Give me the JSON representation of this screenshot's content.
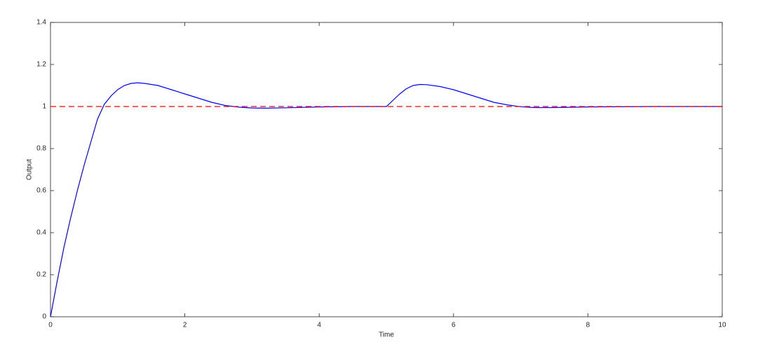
{
  "chart_data": {
    "type": "line",
    "xlabel": "Time",
    "ylabel": "Output",
    "xlim": [
      0,
      10
    ],
    "xticks": [
      0,
      2,
      4,
      6,
      8,
      10
    ],
    "ylim": [
      0,
      1.4
    ],
    "yticks": [
      0,
      0.2,
      0.4,
      0.6,
      0.8,
      1,
      1.2,
      1.4
    ],
    "grid": false,
    "series": [
      {
        "color": "#0000ff",
        "style": "solid",
        "x": [
          0,
          0.1,
          0.2,
          0.3,
          0.4,
          0.5,
          0.6,
          0.7,
          0.8,
          0.9,
          1.0,
          1.1,
          1.2,
          1.3,
          1.4,
          1.6,
          1.8,
          2.0,
          2.2,
          2.4,
          2.6,
          2.8,
          3.0,
          3.2,
          3.5,
          4.0,
          4.5,
          5.0,
          5.1,
          5.2,
          5.3,
          5.4,
          5.5,
          5.6,
          5.8,
          6.0,
          6.2,
          6.4,
          6.6,
          6.8,
          7.0,
          7.2,
          7.5,
          8.0,
          9.0,
          10.0
        ],
        "values": [
          0,
          0.17,
          0.33,
          0.47,
          0.6,
          0.72,
          0.83,
          0.94,
          1.01,
          1.05,
          1.08,
          1.1,
          1.11,
          1.113,
          1.11,
          1.1,
          1.08,
          1.06,
          1.04,
          1.02,
          1.005,
          0.997,
          0.993,
          0.992,
          0.994,
          0.998,
          1.0,
          1.0,
          1.03,
          1.06,
          1.085,
          1.1,
          1.105,
          1.104,
          1.095,
          1.08,
          1.06,
          1.04,
          1.02,
          1.008,
          0.999,
          0.995,
          0.995,
          0.998,
          1.0,
          1.0
        ]
      },
      {
        "color": "#ff0000",
        "style": "dashed",
        "x": [
          0,
          10
        ],
        "values": [
          1,
          1
        ]
      }
    ]
  }
}
